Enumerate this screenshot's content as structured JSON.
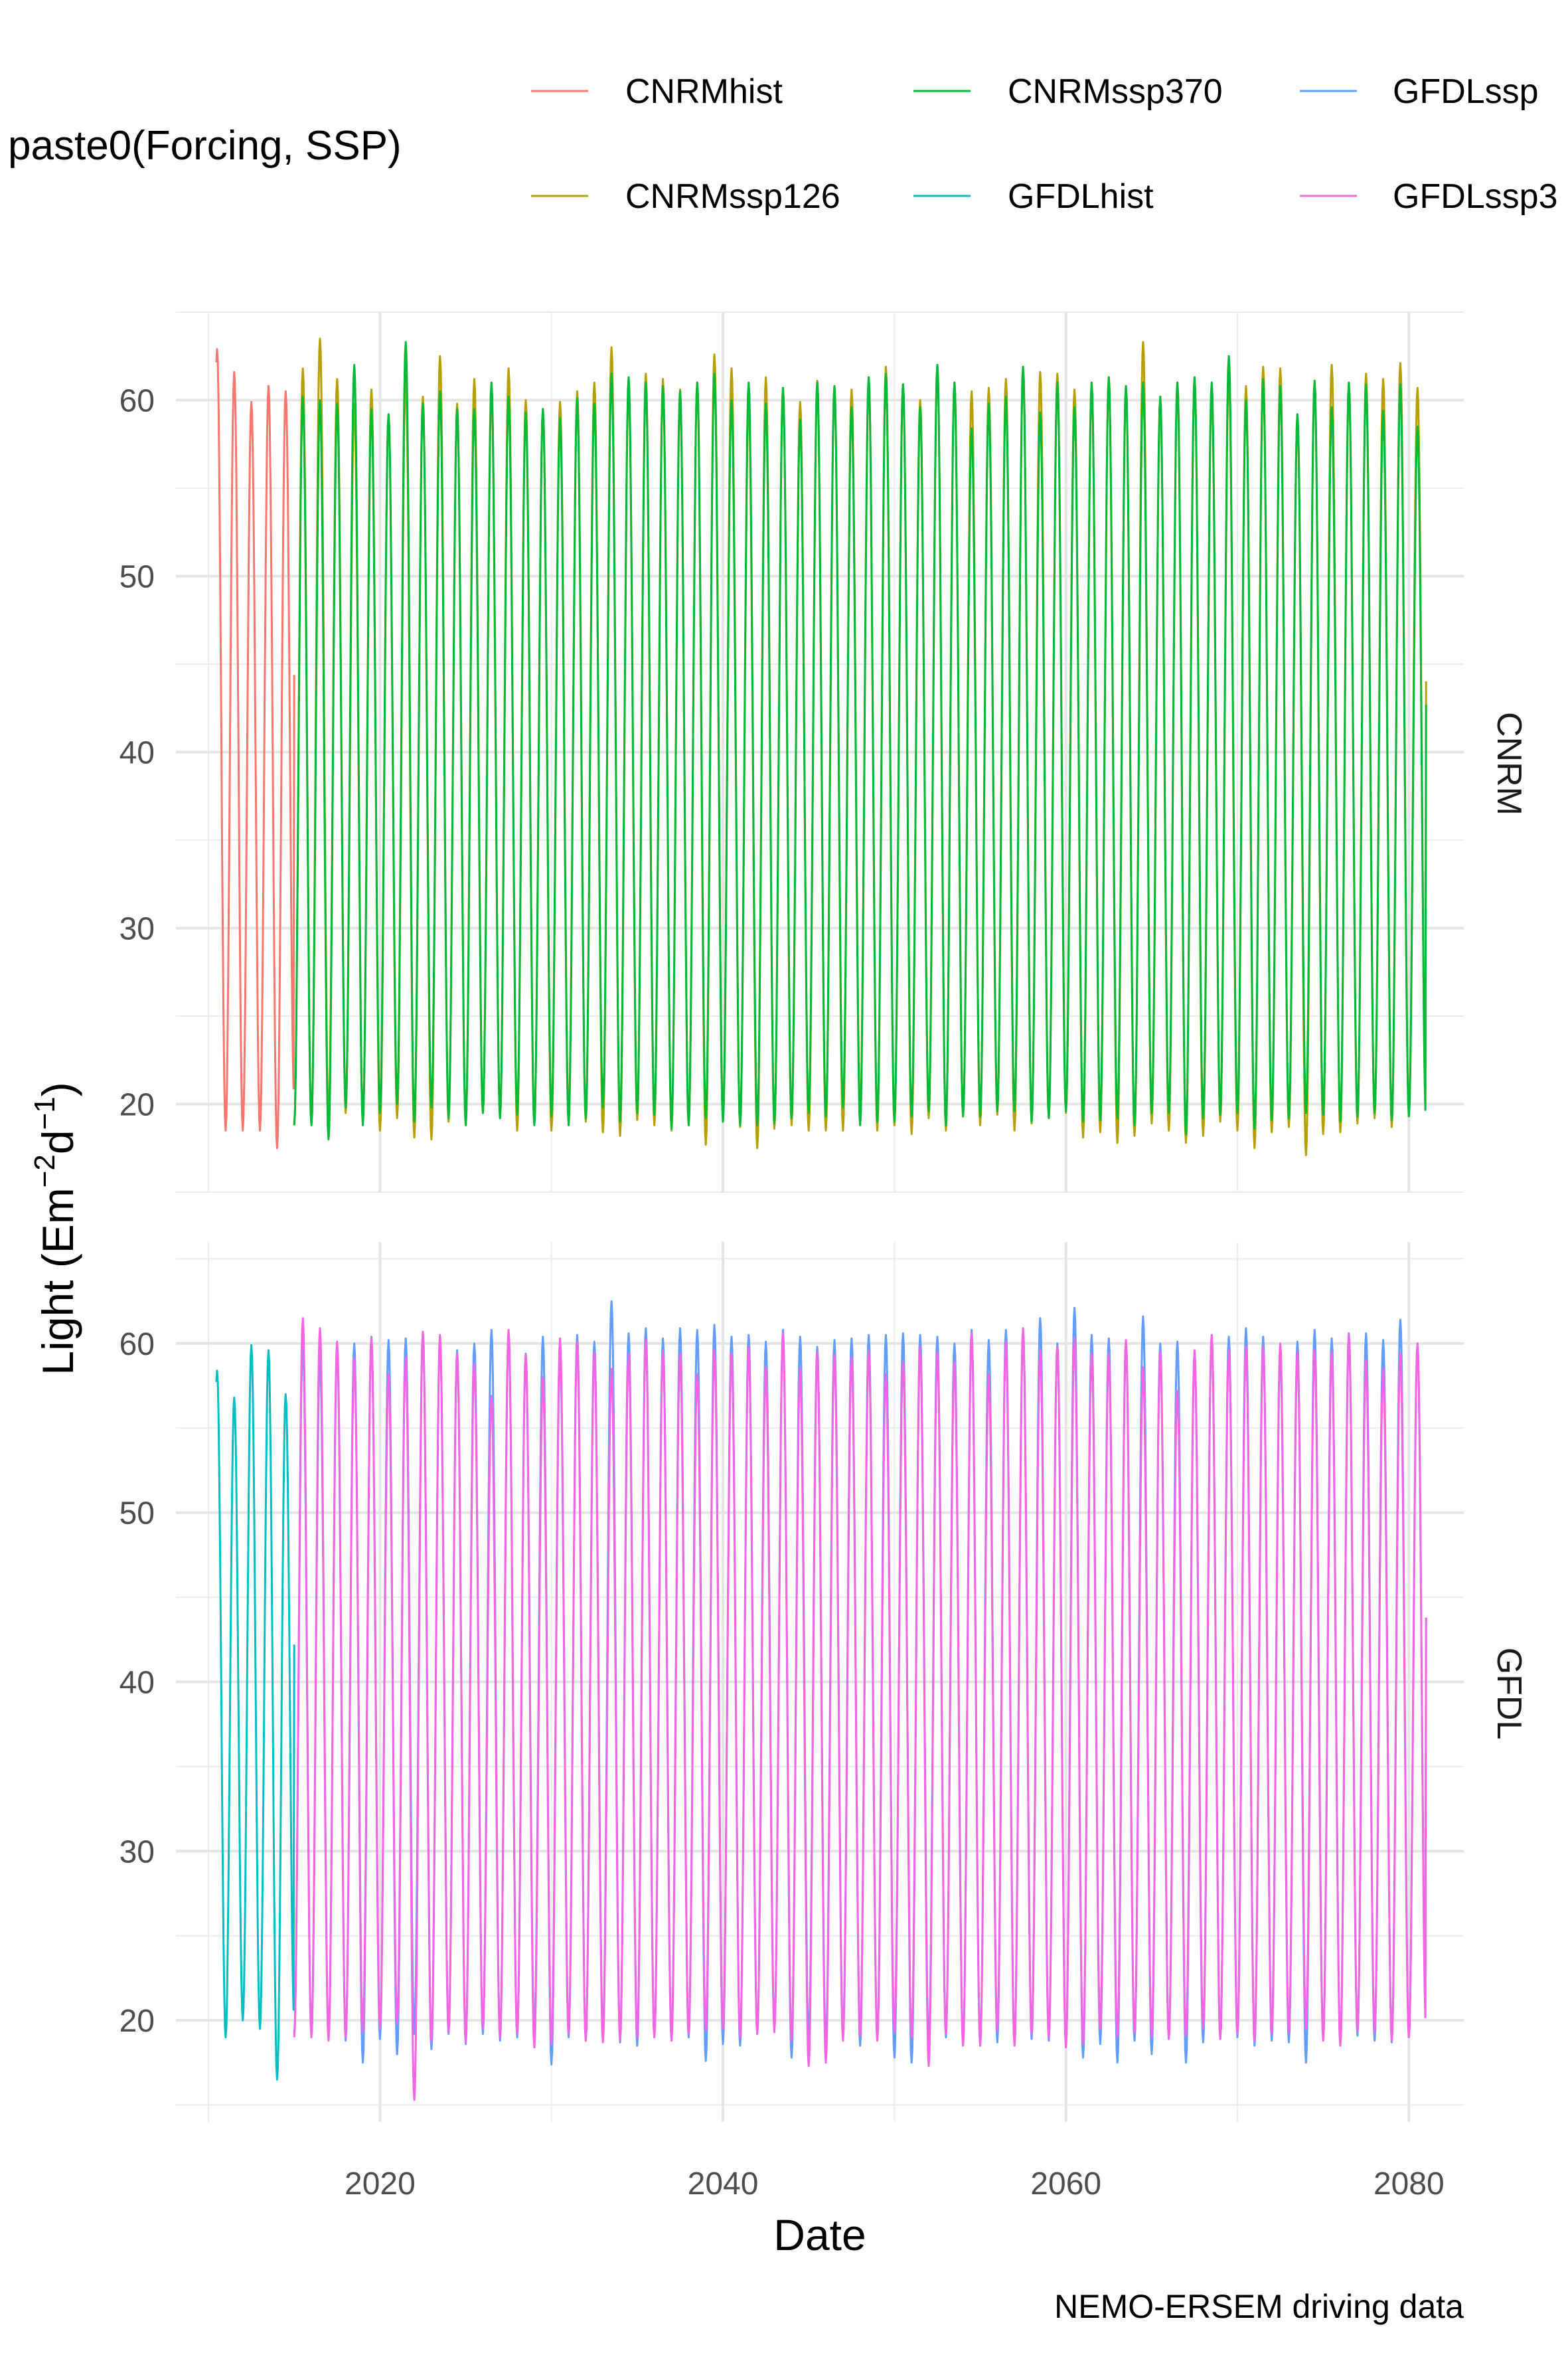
{
  "chart_data": {
    "type": "line",
    "xlabel": "Date",
    "ylabel": "Light (Em",
    "ylabel_sup1": "−2",
    "ylabel_mid": "d",
    "ylabel_sup2": "−1",
    "ylabel_end": ")",
    "caption": "NEMO-ERSEM driving data",
    "legend_title": "paste0(Forcing, SSP)",
    "legend_position": "top",
    "grid": true,
    "xlim": [
      2008.1,
      2083.2
    ],
    "x_ticks": [
      2020,
      2040,
      2060,
      2080
    ],
    "x_tick_labels": [
      "2020",
      "2040",
      "2060",
      "2080"
    ],
    "legend": [
      {
        "name": "CNRMhist",
        "color": "#F8766D"
      },
      {
        "name": "CNRMssp126",
        "color": "#B79F00"
      },
      {
        "name": "CNRMssp370",
        "color": "#00BA38"
      },
      {
        "name": "GFDLhist",
        "color": "#00BFC4"
      },
      {
        "name": "GFDLssp",
        "color": "#619CFF"
      },
      {
        "name": "GFDLssp3",
        "color": "#F564E3"
      }
    ],
    "facets": [
      {
        "label": "CNRM",
        "ylim": [
          15,
          65
        ],
        "y_ticks": [
          20,
          30,
          40,
          50,
          60
        ],
        "y_tick_labels": [
          "20",
          "30",
          "40",
          "50",
          "60"
        ],
        "series": [
          {
            "legend_index": 0,
            "start_year": 2010,
            "years": 5,
            "phase_start": 0.45,
            "peaks": [
              62.9,
              61.6,
              59.9,
              60.8,
              60.5
            ],
            "troughs": [
              18.5,
              18.5,
              18.5,
              17.5,
              20.2
            ]
          },
          {
            "legend_index": 1,
            "start_year": 2015,
            "years": 66,
            "phase_start": 0.0,
            "peaks": [
              61.8,
              63.5,
              61.2,
              59.8,
              60.6,
              59.2,
              61.4,
              60.2,
              62.5,
              59.8,
              61.2,
              60.5,
              61.8,
              60.0,
              59.5,
              59.9,
              60.5,
              61.0,
              63.0,
              60.8,
              61.5,
              61.2,
              60.6,
              61.0,
              62.6,
              61.8,
              60.0,
              61.3,
              60.7,
              59.9,
              61.1,
              60.8,
              60.6,
              61.3,
              61.9,
              60.9,
              60.0,
              62.0,
              61.0,
              60.5,
              60.7,
              61.2,
              61.9,
              61.6,
              61.5,
              60.6,
              61.0,
              61.3,
              60.8,
              63.3,
              60.2,
              61.0,
              61.3,
              60.5,
              61.5,
              60.8,
              61.9,
              61.8,
              59.2,
              61.1,
              62.0,
              60.8,
              61.5,
              61.2,
              62.1,
              60.7
            ],
            "troughs": [
              18.8,
              19.2,
              19.5,
              19.0,
              18.5,
              19.2,
              18.1,
              18.0,
              19.0,
              18.8,
              19.5,
              19.2,
              18.5,
              19.0,
              18.5,
              19.3,
              19.0,
              18.4,
              18.2,
              19.1,
              18.8,
              18.5,
              18.8,
              17.7,
              19.2,
              18.7,
              17.5,
              18.6,
              18.8,
              18.5,
              18.5,
              18.5,
              19.5,
              18.5,
              18.8,
              18.3,
              19.2,
              18.5,
              19.3,
              18.8,
              19.4,
              18.5,
              18.9,
              19.2,
              19.5,
              18.1,
              18.4,
              17.8,
              18.2,
              18.9,
              18.5,
              17.8,
              18.2,
              19.0,
              18.5,
              17.5,
              18.4,
              18.7,
              17.1,
              18.3,
              18.4,
              18.9,
              19.2,
              18.7,
              19.5,
              19.0
            ]
          },
          {
            "legend_index": 2,
            "start_year": 2015,
            "years": 66,
            "phase_start": 0.0,
            "peaks": [
              60.2,
              60.0,
              59.8,
              62.0,
              59.5,
              59.2,
              63.3,
              59.8,
              60.5,
              59.5,
              59.5,
              61.0,
              60.2,
              59.3,
              59.5,
              59.0,
              60.1,
              59.8,
              61.5,
              61.3,
              61.0,
              60.8,
              60.5,
              61.0,
              61.5,
              60.0,
              61.0,
              59.8,
              60.7,
              58.9,
              61.0,
              60.8,
              59.6,
              61.3,
              61.5,
              60.9,
              59.6,
              62.0,
              61.0,
              58.4,
              59.8,
              60.2,
              61.9,
              59.3,
              61.0,
              59.6,
              61.0,
              61.3,
              60.8,
              61.0,
              60.2,
              61.0,
              61.3,
              61.0,
              62.5,
              60.0,
              61.2,
              60.8,
              59.2,
              61.1,
              59.6,
              61.0,
              60.9,
              59.4,
              60.9,
              58.5
            ],
            "troughs": [
              18.8,
              18.0,
              19.8,
              18.8,
              19.5,
              20.0,
              19.0,
              19.8,
              19.2,
              18.8,
              19.5,
              19.2,
              19.4,
              18.8,
              19.3,
              18.8,
              19.2,
              19.8,
              19.0,
              19.5,
              19.4,
              18.6,
              18.8,
              19.2,
              19.0,
              18.8,
              18.8,
              18.9,
              19.2,
              19.5,
              19.3,
              19.8,
              18.8,
              19.0,
              19.0,
              19.3,
              19.6,
              18.8,
              19.3,
              19.3,
              19.6,
              19.6,
              19.0,
              19.2,
              19.6,
              19.0,
              19.1,
              19.2,
              18.8,
              19.5,
              19.5,
              18.3,
              19.2,
              19.4,
              19.5,
              18.6,
              19.1,
              19.2,
              19.5,
              19.4,
              19.0,
              19.3,
              19.5,
              19.1,
              19.3,
              19.0
            ]
          }
        ]
      },
      {
        "label": "GFDL",
        "ylim": [
          14,
          66
        ],
        "y_ticks": [
          20,
          30,
          40,
          50,
          60
        ],
        "y_tick_labels": [
          "20",
          "30",
          "40",
          "50",
          "60"
        ],
        "series": [
          {
            "legend_index": 3,
            "start_year": 2010,
            "years": 5,
            "phase_start": 0.45,
            "peaks": [
              58.4,
              56.8,
              59.9,
              59.6,
              57.0
            ],
            "troughs": [
              19.0,
              20.0,
              19.5,
              16.5,
              20.0
            ]
          },
          {
            "legend_index": 4,
            "start_year": 2015,
            "years": 66,
            "phase_start": 0.0,
            "peaks": [
              60.2,
              59.3,
              59.8,
              60.0,
              60.4,
              60.2,
              60.3,
              60.6,
              60.2,
              59.6,
              60.0,
              60.8,
              60.5,
              59.4,
              60.4,
              59.5,
              60.5,
              60.1,
              62.5,
              60.6,
              60.9,
              60.3,
              60.9,
              60.8,
              61.1,
              60.4,
              60.5,
              60.1,
              60.8,
              60.4,
              59.8,
              60.2,
              60.3,
              60.5,
              60.5,
              60.6,
              60.5,
              60.4,
              60.0,
              60.8,
              60.2,
              60.8,
              60.5,
              61.5,
              60.0,
              62.1,
              60.5,
              60.3,
              60.0,
              61.6,
              60.0,
              60.1,
              59.4,
              60.5,
              60.4,
              60.9,
              60.4,
              59.5,
              60.1,
              60.8,
              60.3,
              60.6,
              60.6,
              60.2,
              61.4,
              60.0
            ],
            "troughs": [
              19.2,
              19.0,
              18.8,
              17.5,
              18.9,
              18.0,
              19.2,
              18.3,
              19.2,
              18.6,
              19.2,
              18.8,
              19.0,
              19.3,
              17.4,
              19.0,
              18.8,
              19.2,
              18.7,
              18.5,
              19.0,
              18.8,
              19.0,
              17.6,
              18.6,
              18.5,
              19.2,
              19.5,
              17.8,
              18.8,
              18.5,
              19.0,
              18.5,
              18.8,
              17.8,
              17.5,
              18.5,
              19.0,
              18.7,
              18.5,
              18.7,
              18.6,
              18.9,
              18.8,
              18.5,
              17.8,
              18.6,
              17.5,
              18.8,
              18.0,
              18.9,
              17.5,
              18.7,
              18.9,
              19.0,
              18.5,
              18.8,
              18.7,
              17.5,
              19.0,
              18.6,
              19.1,
              18.8,
              18.7,
              19.0,
              19.5
            ]
          },
          {
            "legend_index": 5,
            "start_year": 2015,
            "years": 66,
            "phase_start": 0.0,
            "peaks": [
              61.5,
              60.9,
              60.1,
              59.1,
              60.3,
              58.2,
              59.2,
              60.7,
              60.5,
              59.4,
              58.8,
              56.9,
              60.8,
              59.3,
              58.0,
              60.3,
              60.1,
              59.5,
              58.5,
              59.4,
              60.2,
              59.6,
              59.4,
              58.2,
              59.6,
              59.4,
              59.8,
              58.6,
              60.6,
              58.5,
              59.5,
              59.3,
              59.2,
              59.6,
              58.2,
              58.9,
              59.8,
              59.5,
              58.9,
              60.6,
              58.2,
              60.1,
              60.9,
              59.6,
              59.8,
              60.3,
              59.4,
              59.4,
              60.2,
              58.6,
              59.5,
              57.2,
              59.6,
              60.5,
              59.6,
              59.8,
              59.8,
              60.0,
              59.5,
              59.6,
              59.5,
              60.5,
              59.0,
              58.5,
              59.4,
              60.0
            ],
            "troughs": [
              19.0,
              18.8,
              19.0,
              19.3,
              19.5,
              19.8,
              15.3,
              18.8,
              19.3,
              18.7,
              19.5,
              19.0,
              19.2,
              18.4,
              18.6,
              19.2,
              18.8,
              18.7,
              18.8,
              19.0,
              19.0,
              18.8,
              19.2,
              19.4,
              19.5,
              19.0,
              19.2,
              19.3,
              18.8,
              17.3,
              17.5,
              18.8,
              19.1,
              18.8,
              19.3,
              19.0,
              17.3,
              19.2,
              18.5,
              18.5,
              19.4,
              18.5,
              19.2,
              19.0,
              18.4,
              18.6,
              19.5,
              19.0,
              19.3,
              19.0,
              18.9,
              19.1,
              19.5,
              18.9,
              19.2,
              18.8,
              19.2,
              19.3,
              19.5,
              18.8,
              18.5,
              19.4,
              19.3,
              18.8,
              19.0,
              19.5
            ]
          }
        ]
      }
    ]
  }
}
